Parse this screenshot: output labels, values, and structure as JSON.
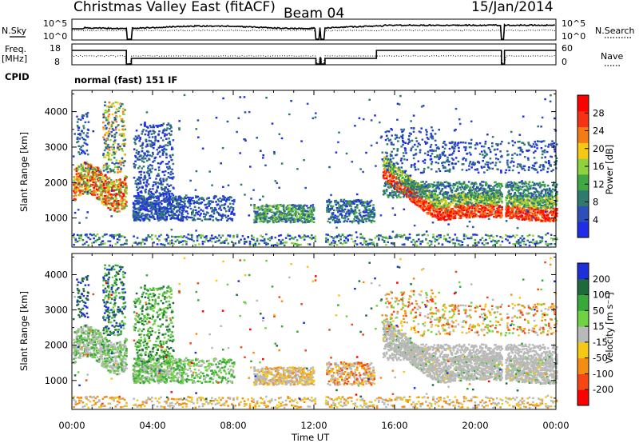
{
  "header": {
    "title": "Christmas Valley East (fitACF)",
    "beam": "Beam 04",
    "date": "15/Jan/2014",
    "cpid_label": "CPID",
    "cpid_value": "normal (fast) 151 IF"
  },
  "status_panels": {
    "noise": {
      "left_label": "N.Sky",
      "right_label": "N.Search",
      "left_ticks": [
        "10^5",
        "10^0"
      ],
      "right_ticks": [
        "10^5",
        "10^0"
      ]
    },
    "frequency": {
      "left_label": "Freq.",
      "left_unit": "[MHz]",
      "right_label": "Nave",
      "left_ticks": [
        "18",
        "8"
      ],
      "right_ticks": [
        "60",
        "0"
      ]
    }
  },
  "chart_data": [
    {
      "type": "heatmap",
      "panel": "power",
      "ylabel": "Slant Range [km]",
      "xlabel": "",
      "x_ticks": [
        "00:00",
        "04:00",
        "08:00",
        "12:00",
        "16:00",
        "20:00",
        "00:00"
      ],
      "xlim": [
        0,
        24
      ],
      "y_ticks": [
        1000,
        2000,
        3000,
        4000
      ],
      "ylim": [
        180,
        4600
      ],
      "colorbar": {
        "label": "Power [dB]",
        "ticks": [
          4,
          8,
          12,
          16,
          20,
          24,
          28
        ],
        "range": [
          0,
          32
        ],
        "colors": [
          "#1f2de6",
          "#2c4fb8",
          "#2e7a6f",
          "#3fa845",
          "#8fd23e",
          "#f5c814",
          "#f57c14",
          "#f53214",
          "#ff0000"
        ]
      }
    },
    {
      "type": "heatmap",
      "panel": "velocity",
      "ylabel": "Slant Range [km]",
      "xlabel": "Time UT",
      "x_ticks": [
        "00:00",
        "04:00",
        "08:00",
        "12:00",
        "16:00",
        "20:00",
        "00:00"
      ],
      "xlim": [
        0,
        24
      ],
      "y_ticks": [
        1000,
        2000,
        3000,
        4000
      ],
      "ylim": [
        180,
        4600
      ],
      "colorbar": {
        "label": "Velocity [m s⁻¹]",
        "ticks": [
          "200",
          "100",
          "50",
          "15",
          "-15",
          "-50",
          "-100",
          "-200"
        ],
        "colors": [
          "#1c2fd8",
          "#1f6a3c",
          "#39a83a",
          "#6fd242",
          "#b9b9b9",
          "#f5c814",
          "#f58c14",
          "#f54614",
          "#ff0000"
        ]
      }
    }
  ]
}
